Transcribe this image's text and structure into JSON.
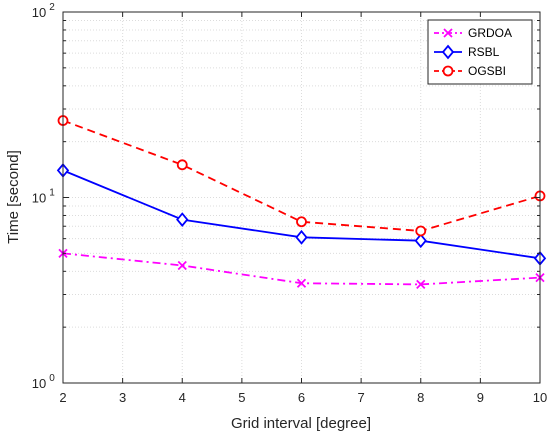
{
  "chart_data": {
    "type": "line",
    "x": [
      2,
      4,
      6,
      8,
      10
    ],
    "xlabel": "Grid interval [degree]",
    "ylabel": "Time [second]",
    "xlim": [
      2,
      10
    ],
    "ylim": [
      1,
      100
    ],
    "yscale": "log",
    "grid": true,
    "legend_position": "top-right",
    "xticks": [
      "2",
      "3",
      "4",
      "5",
      "6",
      "7",
      "8",
      "9",
      "10"
    ],
    "yticks": [
      {
        "base": "10",
        "exp": "0"
      },
      {
        "base": "10",
        "exp": "1"
      },
      {
        "base": "10",
        "exp": "2"
      }
    ],
    "series": [
      {
        "name": "GRDOA",
        "values": [
          5.0,
          4.3,
          3.45,
          3.4,
          3.7
        ],
        "color": "#ff00ff",
        "dash": "dashdot",
        "marker": "x"
      },
      {
        "name": "RSBL",
        "values": [
          14.0,
          7.6,
          6.1,
          5.85,
          4.7
        ],
        "color": "#0000ff",
        "dash": "solid",
        "marker": "diamond"
      },
      {
        "name": "OGSBI",
        "values": [
          26.0,
          15.0,
          7.4,
          6.6,
          10.2
        ],
        "color": "#ff0000",
        "dash": "dashed",
        "marker": "circle"
      }
    ]
  }
}
